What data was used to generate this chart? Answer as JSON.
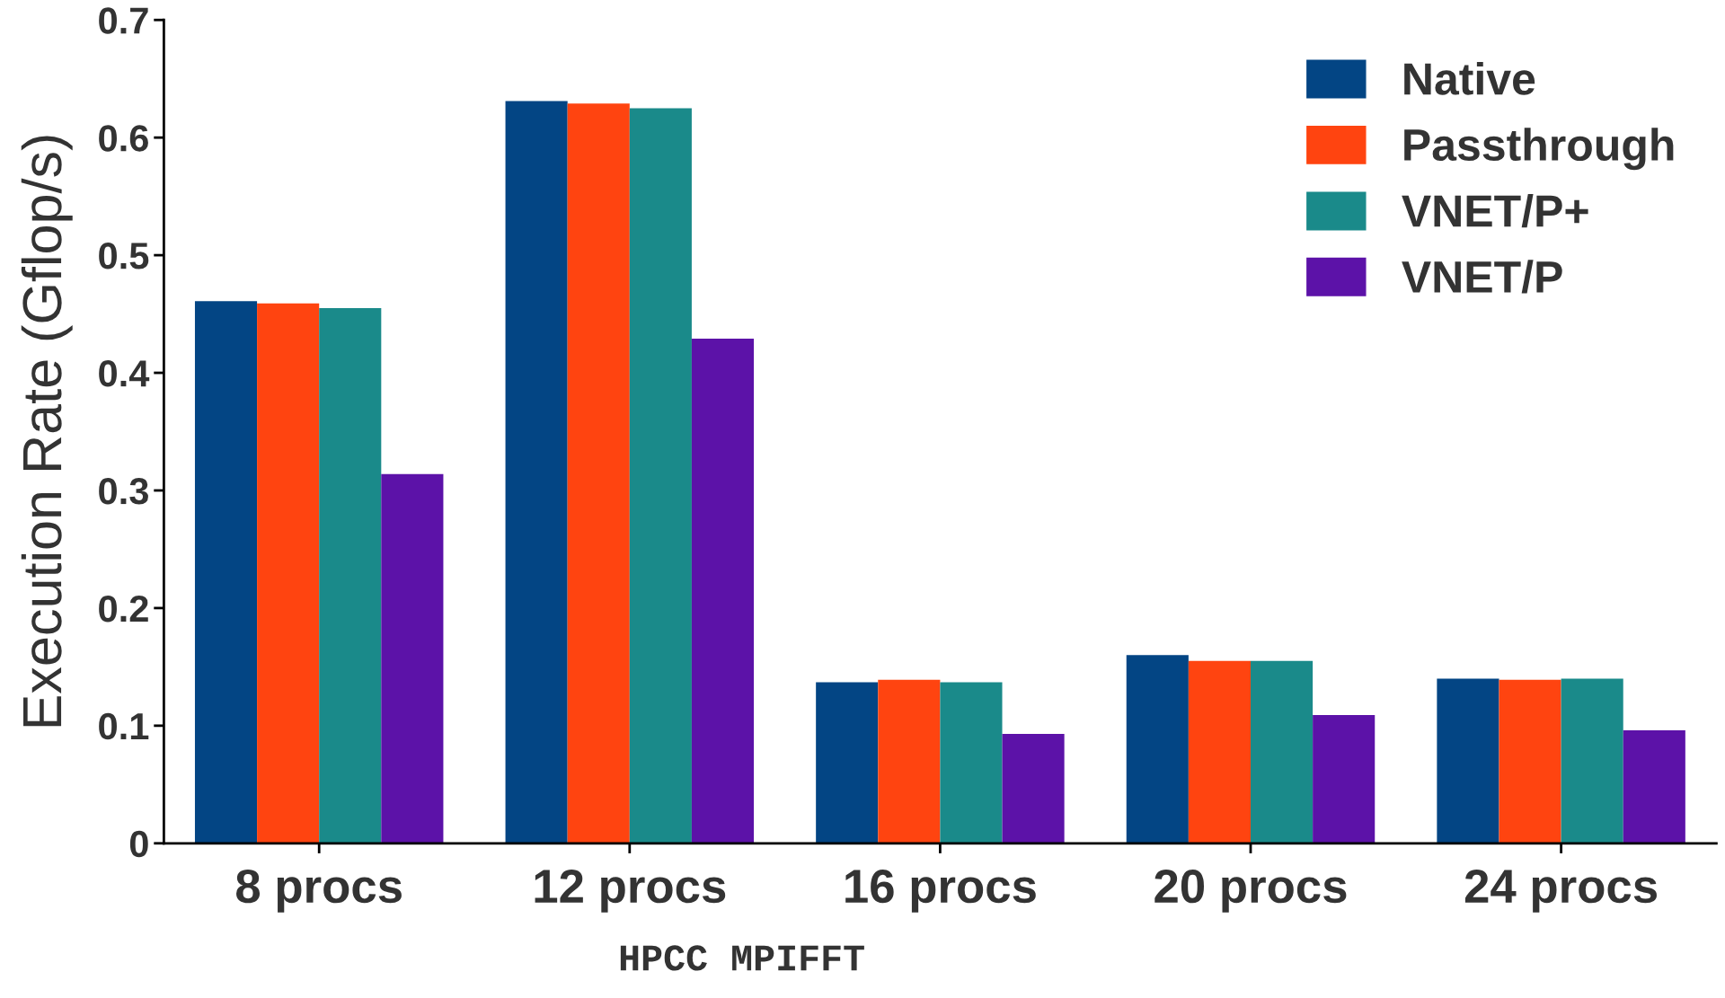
{
  "chart_data": {
    "type": "bar",
    "ylabel": "Execution Rate (Gflop/s)",
    "categories": [
      "8 procs",
      "12 procs",
      "16 procs",
      "20 procs",
      "24 procs"
    ],
    "series": [
      {
        "name": "Native",
        "color": "#034584",
        "values": [
          0.461,
          0.631,
          0.137,
          0.16,
          0.14
        ]
      },
      {
        "name": "Passthrough",
        "color": "#ff4410",
        "values": [
          0.459,
          0.629,
          0.139,
          0.155,
          0.139
        ]
      },
      {
        "name": "VNET/P+",
        "color": "#1a8a8a",
        "values": [
          0.455,
          0.625,
          0.137,
          0.155,
          0.14
        ]
      },
      {
        "name": "VNET/P",
        "color": "#5c12a8",
        "values": [
          0.314,
          0.429,
          0.093,
          0.109,
          0.096
        ]
      }
    ],
    "ylim": [
      0,
      0.7
    ],
    "yticks": [
      {
        "value": 0,
        "label": "0"
      },
      0.1,
      0.2,
      0.3,
      0.4,
      0.5,
      0.6,
      0.7
    ],
    "grid": false,
    "legend": "top right",
    "annotations": [
      "HPCC MPIFFT"
    ]
  }
}
